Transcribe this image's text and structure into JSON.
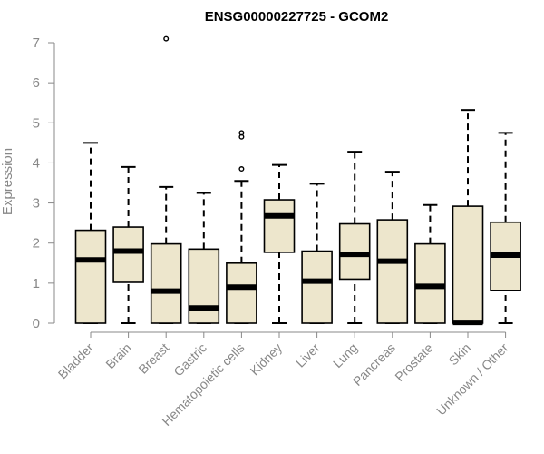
{
  "chart_data": {
    "type": "boxplot",
    "title": "ENSG00000227725 - GCOM2",
    "ylabel": "Expression",
    "xlabel": "",
    "ylim": [
      0,
      7
    ],
    "yticks": [
      0,
      1,
      2,
      3,
      4,
      5,
      6,
      7
    ],
    "box_fill": "#ede6cc",
    "line_color": "#000000",
    "axis_color": "#888888",
    "grid": false,
    "categories": [
      "Bladder",
      "Brain",
      "Breast",
      "Gastric",
      "Hematopoietic cells",
      "Kidney",
      "Liver",
      "Lung",
      "Pancreas",
      "Prostate",
      "Skin",
      "Unknown / Other"
    ],
    "boxes": [
      {
        "category": "Bladder",
        "whisker_low": 0,
        "q1": 0,
        "median": 1.58,
        "q3": 2.32,
        "whisker_high": 4.5,
        "outliers": []
      },
      {
        "category": "Brain",
        "whisker_low": 0,
        "q1": 1.02,
        "median": 1.8,
        "q3": 2.4,
        "whisker_high": 3.9,
        "outliers": []
      },
      {
        "category": "Breast",
        "whisker_low": 0,
        "q1": 0,
        "median": 0.8,
        "q3": 1.98,
        "whisker_high": 3.4,
        "outliers": [
          7.1
        ]
      },
      {
        "category": "Gastric",
        "whisker_low": 0,
        "q1": 0,
        "median": 0.38,
        "q3": 1.85,
        "whisker_high": 3.25,
        "outliers": []
      },
      {
        "category": "Hematopoietic cells",
        "whisker_low": 0,
        "q1": 0,
        "median": 0.9,
        "q3": 1.5,
        "whisker_high": 3.55,
        "outliers": [
          3.85,
          4.65,
          4.75
        ]
      },
      {
        "category": "Kidney",
        "whisker_low": 0,
        "q1": 1.77,
        "median": 2.68,
        "q3": 3.08,
        "whisker_high": 3.95,
        "outliers": []
      },
      {
        "category": "Liver",
        "whisker_low": 0,
        "q1": 0,
        "median": 1.05,
        "q3": 1.8,
        "whisker_high": 3.48,
        "outliers": []
      },
      {
        "category": "Lung",
        "whisker_low": 0,
        "q1": 1.1,
        "median": 1.72,
        "q3": 2.48,
        "whisker_high": 4.28,
        "outliers": []
      },
      {
        "category": "Pancreas",
        "whisker_low": 0,
        "q1": 0,
        "median": 1.55,
        "q3": 2.58,
        "whisker_high": 3.78,
        "outliers": []
      },
      {
        "category": "Prostate",
        "whisker_low": 0,
        "q1": 0,
        "median": 0.92,
        "q3": 1.98,
        "whisker_high": 2.95,
        "outliers": []
      },
      {
        "category": "Skin",
        "whisker_low": 0,
        "q1": 0,
        "median": 0.02,
        "q3": 2.92,
        "whisker_high": 5.32,
        "outliers": []
      },
      {
        "category": "Unknown / Other",
        "whisker_low": 0,
        "q1": 0.82,
        "median": 1.7,
        "q3": 2.52,
        "whisker_high": 4.75,
        "outliers": []
      }
    ]
  }
}
